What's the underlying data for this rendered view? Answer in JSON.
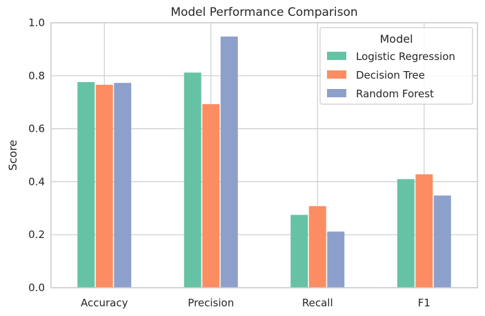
{
  "chart_data": {
    "type": "bar",
    "title": "Model Performance Comparison",
    "xlabel": "",
    "ylabel": "Score",
    "ylim": [
      0,
      1.0
    ],
    "yticks": [
      0.0,
      0.2,
      0.4,
      0.6,
      0.8,
      1.0
    ],
    "ytick_labels": [
      "0.0",
      "0.2",
      "0.4",
      "0.6",
      "0.8",
      "1.0"
    ],
    "grid": true,
    "categories": [
      "Accuracy",
      "Precision",
      "Recall",
      "F1"
    ],
    "series": [
      {
        "name": "Logistic Regression",
        "color": "#66c2a5",
        "values": [
          0.776,
          0.812,
          0.275,
          0.41
        ]
      },
      {
        "name": "Decision Tree",
        "color": "#fc8d62",
        "values": [
          0.766,
          0.693,
          0.308,
          0.428
        ]
      },
      {
        "name": "Random Forest",
        "color": "#8da0cb",
        "values": [
          0.773,
          0.948,
          0.212,
          0.348
        ]
      }
    ],
    "legend": {
      "title": "Model",
      "position": "top-right"
    }
  }
}
